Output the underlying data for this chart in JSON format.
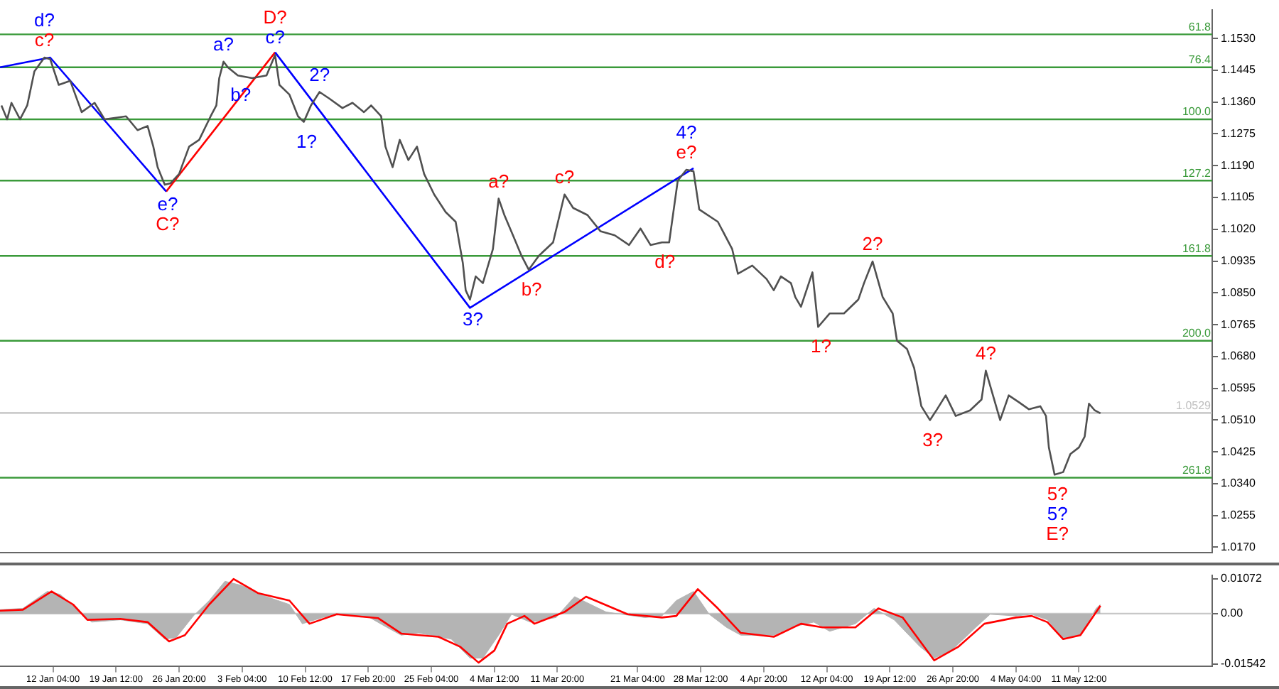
{
  "chart_data": [
    {
      "type": "line",
      "legend": false,
      "marker": "none",
      "line_style": "solid",
      "tick_labels": "y",
      "xlim": [
        "--01-06T00:00",
        "--05-27T00:00"
      ],
      "ylim": [
        1.0155,
        1.1607
      ],
      "yticks": [
        {
          "value": 1.017,
          "label": "1.0170"
        },
        {
          "value": 1.0255,
          "label": "1.0255"
        },
        {
          "value": 1.034,
          "label": "1.0340"
        },
        {
          "value": 1.0425,
          "label": "1.0425"
        },
        {
          "value": 1.051,
          "label": "1.0510"
        },
        {
          "value": 1.0595,
          "label": "1.0595"
        },
        {
          "value": 1.068,
          "label": "1.0680"
        },
        {
          "value": 1.0765,
          "label": "1.0765"
        },
        {
          "value": 1.085,
          "label": "1.0850"
        },
        {
          "value": 1.0935,
          "label": "1.0935"
        },
        {
          "value": 1.102,
          "label": "1.1020"
        },
        {
          "value": 1.1105,
          "label": "1.1105"
        },
        {
          "value": 1.119,
          "label": "1.1190"
        },
        {
          "value": 1.1275,
          "label": "1.1275"
        },
        {
          "value": 1.136,
          "label": "1.1360"
        },
        {
          "value": 1.1445,
          "label": "1.1445"
        },
        {
          "value": 1.153,
          "label": "1.1530"
        }
      ],
      "series": [
        {
          "color": "#505050",
          "x": [
            "--01-06T04:00",
            "--01-06T20:00",
            "--01-07T08:00",
            "--01-08T08:00",
            "--01-09T04:00",
            "--01-10T00:00",
            "--01-11T04:00",
            "--01-11T20:00",
            "--01-12T20:00",
            "--01-14T04:00",
            "--01-15T12:00",
            "--01-17T00:00",
            "--01-18T04:00",
            "--01-20T16:00",
            "--01-22T00:00",
            "--01-23T04:00",
            "--01-23T20:00",
            "--01-24T08:00",
            "--01-25T04:00",
            "--01-25T20:00",
            "--01-26T20:00",
            "--01-28T00:00",
            "--01-29T04:00",
            "--01-30T12:00",
            "--01-31T04:00",
            "--01-31T12:00",
            "--02-01T00:00",
            "--02-01T12:00",
            "--02-02T16:00",
            "--02-04T08:00",
            "--02-06T00:00",
            "--02-07T00:00",
            "--02-07T12:00",
            "--02-08T16:00",
            "--02-09T16:00",
            "--02-10T08:00",
            "--02-11T04:00",
            "--02-12T04:00",
            "--02-13T08:00",
            "--02-14T20:00",
            "--02-16T00:00",
            "--02-17T08:00",
            "--02-18T04:00",
            "--02-19T08:00",
            "--02-19T20:00",
            "--02-20T16:00",
            "--02-21T12:00",
            "--02-22T12:00",
            "--02-23T12:00",
            "--02-24T08:00",
            "--02-25T12:00",
            "--02-26T20:00",
            "--02-28T00:00",
            "--02-28T20:00",
            "--03-01T04:00",
            "--03-01T16:00",
            "--03-02T08:00",
            "--03-03T04:00",
            "--03-04T08:00",
            "--03-05T00:00",
            "--03-05T16:00",
            "--03-06T16:00",
            "--03-07T16:00",
            "--03-08T12:00",
            "--03-09T16:00",
            "--03-11T08:00",
            "--03-12T16:00",
            "--03-13T16:00",
            "--03-15T08:00",
            "--03-16T20:00",
            "--03-18T12:00",
            "--03-20T04:00",
            "--03-21T12:00",
            "--03-22T16:00",
            "--03-24T00:00",
            "--03-24T20:00",
            "--03-25T20:00",
            "--03-26T20:00",
            "--03-27T16:00",
            "--03-28T08:00",
            "--03-30T12:00",
            "--04-01T04:00",
            "--04-01T20:00",
            "--04-03T12:00",
            "--04-05T04:00",
            "--04-06T00:00",
            "--04-06T20:00",
            "--04-08T00:00",
            "--04-08T12:00",
            "--04-09T04:00",
            "--04-10T12:00",
            "--04-11T04:00",
            "--04-12T12:00",
            "--04-14T04:00",
            "--04-15T20:00",
            "--04-16T12:00",
            "--04-17T12:00",
            "--04-18T16:00",
            "--04-19T20:00",
            "--04-20T08:00",
            "--04-21T12:00",
            "--04-22T08:00",
            "--04-23T04:00",
            "--04-24T04:00",
            "--04-25T00:00",
            "--04-26T00:00",
            "--04-27T04:00",
            "--04-28T20:00",
            "--04-30T04:00",
            "--04-30T16:00",
            "--05-01T12:00",
            "--05-02T08:00",
            "--05-03T08:00",
            "--05-04T12:00",
            "--05-05T16:00",
            "--05-07T00:00",
            "--05-07T16:00",
            "--05-08T00:00",
            "--05-08T16:00",
            "--05-09T16:00",
            "--05-10T12:00",
            "--05-11T12:00",
            "--05-12T04:00",
            "--05-12T16:00",
            "--05-13T08:00",
            "--05-14T00:00"
          ],
          "values": [
            1.1351,
            1.1314,
            1.1358,
            1.1314,
            1.1351,
            1.1442,
            1.1479,
            1.1475,
            1.1406,
            1.1417,
            1.1333,
            1.1358,
            1.1314,
            1.1322,
            1.1285,
            1.1296,
            1.1241,
            1.1186,
            1.1139,
            1.1143,
            1.1168,
            1.1241,
            1.1259,
            1.1322,
            1.1351,
            1.1424,
            1.1468,
            1.1453,
            1.1431,
            1.1424,
            1.1431,
            1.1486,
            1.1406,
            1.138,
            1.1322,
            1.1307,
            1.1351,
            1.1387,
            1.1369,
            1.1344,
            1.1358,
            1.1333,
            1.1351,
            1.1322,
            1.1241,
            1.1186,
            1.1259,
            1.1205,
            1.1241,
            1.1168,
            1.1113,
            1.1066,
            1.104,
            1.093,
            1.0857,
            1.0832,
            1.0894,
            1.0876,
            1.0967,
            1.1102,
            1.1058,
            1.1004,
            1.0949,
            1.0912,
            1.0949,
            1.0985,
            1.1113,
            1.1077,
            1.1058,
            1.1015,
            1.1004,
            1.0978,
            1.1022,
            1.0978,
            1.0985,
            1.0985,
            1.115,
            1.1179,
            1.1175,
            1.1073,
            1.104,
            1.0967,
            1.0901,
            1.0923,
            1.0887,
            1.0857,
            1.0894,
            1.0876,
            1.0839,
            1.0813,
            1.0905,
            1.0759,
            1.0795,
            1.0795,
            1.0832,
            1.0876,
            1.0934,
            1.0839,
            1.0795,
            1.0722,
            1.07,
            1.0649,
            1.0547,
            1.051,
            1.0539,
            1.0576,
            1.0521,
            1.0536,
            1.0565,
            1.0642,
            1.0576,
            1.051,
            1.0576,
            1.0558,
            1.0539,
            1.0547,
            1.0521,
            1.0437,
            1.0364,
            1.0371,
            1.0419,
            1.0437,
            1.0466,
            1.0554,
            1.0536,
            1.0528
          ]
        },
        {
          "color": "#0000ff",
          "x": [
            "--01-06T00:00",
            "--01-11T20:00",
            "--01-25T08:00",
            "--01-31T16:00",
            "--02-07T00:00",
            "--03-01T16:00",
            "--03-27T16:00"
          ],
          "values": [
            1.1453,
            1.1479,
            1.1121,
            null,
            1.1493,
            1.081,
            1.1183
          ]
        },
        {
          "color": "#ff0000",
          "x": [
            "--01-25T08:00",
            "--02-07T00:00"
          ],
          "values": [
            1.1121,
            1.1493
          ]
        }
      ],
      "annotations": [
        {
          "text": "c?",
          "x": "--01-11T04:00",
          "y": 1.1479
        },
        {
          "text": "a?",
          "x": "--03-05T00:00",
          "y": 1.1102
        },
        {
          "text": "b?",
          "x": "--03-08T12:00",
          "y": 1.0912
        },
        {
          "text": "c?",
          "x": "--03-12T16:00",
          "y": 1.1113
        },
        {
          "text": "d?",
          "x": "--03-24T00:00",
          "y": 1.0985
        },
        {
          "text": "e?",
          "x": "--03-26T20:00",
          "y": 1.1179
        },
        {
          "text": "1?",
          "x": "--04-11T04:00",
          "y": 1.0759
        },
        {
          "text": "2?",
          "x": "--04-17T12:00",
          "y": 1.0934
        },
        {
          "text": "3?",
          "x": "--04-24T04:00",
          "y": 1.051
        },
        {
          "text": "4?",
          "x": "--04-30T16:00",
          "y": 1.0642
        },
        {
          "text": "5?",
          "x": "--05-08T16:00",
          "y": 1.0364
        },
        {
          "text": "d?",
          "x": "--01-11T04:00",
          "y": 1.1479
        },
        {
          "text": "e?",
          "x": "--01-25T04:00",
          "y": 1.1139
        },
        {
          "text": "a?",
          "x": "--02-01T00:00",
          "y": 1.1468
        },
        {
          "text": "b?",
          "x": "--02-02T16:00",
          "y": 1.1431
        },
        {
          "text": "c?",
          "x": "--02-07T00:00",
          "y": 1.1486
        },
        {
          "text": "1?",
          "x": "--02-10T08:00",
          "y": 1.1307
        },
        {
          "text": "2?",
          "x": "--02-12T04:00",
          "y": 1.1387
        },
        {
          "text": "3?",
          "x": "--03-01T16:00",
          "y": 1.0832
        },
        {
          "text": "4?",
          "x": "--03-26T20:00",
          "y": 1.1179
        },
        {
          "text": "5?",
          "x": "--05-08T16:00",
          "y": 1.0364
        },
        {
          "text": "C?",
          "x": "--01-25T04:00",
          "y": 1.1139
        },
        {
          "text": "D?",
          "x": "--02-07T00:00",
          "y": 1.1486
        },
        {
          "text": "E?",
          "x": "--05-08T16:00",
          "y": 1.0364
        },
        {
          "text": "61.8",
          "x": "--05-27T00:00",
          "y": 1.1541
        },
        {
          "text": "76.4",
          "x": "--05-27T00:00",
          "y": 1.1453
        },
        {
          "text": "100.0",
          "x": "--05-27T00:00",
          "y": 1.1314
        },
        {
          "text": "127.2",
          "x": "--05-27T00:00",
          "y": 1.115
        },
        {
          "text": "161.8",
          "x": "--05-27T00:00",
          "y": 1.0949
        },
        {
          "text": "200.0",
          "x": "--05-27T00:00",
          "y": 1.0722
        },
        {
          "text": "261.8",
          "x": "--05-27T00:00",
          "y": 1.0356
        }
      ],
      "ref_lines": [
        {
          "axis": "y",
          "value": 1.1541,
          "color": "#3a9a3a"
        },
        {
          "axis": "y",
          "value": 1.1453,
          "color": "#3a9a3a"
        },
        {
          "axis": "y",
          "value": 1.1314,
          "color": "#3a9a3a"
        },
        {
          "axis": "y",
          "value": 1.115,
          "color": "#3a9a3a"
        },
        {
          "axis": "y",
          "value": 1.0949,
          "color": "#3a9a3a"
        },
        {
          "axis": "y",
          "value": 1.0722,
          "color": "#3a9a3a"
        },
        {
          "axis": "y",
          "value": 1.0356,
          "color": "#3a9a3a"
        },
        {
          "axis": "y",
          "value": 1.0529,
          "label": "1.0529",
          "color": "#c0c0c0"
        }
      ]
    },
    {
      "type": "area",
      "legend": false,
      "marker": "none",
      "line_style": "solid",
      "xlim": [
        "--01-06T00:00",
        "--05-27T00:00"
      ],
      "ylim": [
        -0.0162,
        0.0118
      ],
      "xticks": [
        {
          "value": "--01-12T04:00",
          "label": "12 Jan 04:00"
        },
        {
          "value": "--01-19T12:00",
          "label": "19 Jan 12:00"
        },
        {
          "value": "--01-26T20:00",
          "label": "26 Jan 20:00"
        },
        {
          "value": "--02-03T04:00",
          "label": "3 Feb 04:00"
        },
        {
          "value": "--02-10T12:00",
          "label": "10 Feb 12:00"
        },
        {
          "value": "--02-17T20:00",
          "label": "17 Feb 20:00"
        },
        {
          "value": "--02-25T04:00",
          "label": "25 Feb 04:00"
        },
        {
          "value": "--03-04T12:00",
          "label": "4 Mar 12:00"
        },
        {
          "value": "--03-11T20:00",
          "label": "11 Mar 20:00"
        },
        {
          "value": "--03-21T04:00",
          "label": "21 Mar 04:00"
        },
        {
          "value": "--03-28T12:00",
          "label": "28 Mar 12:00"
        },
        {
          "value": "--04-04T20:00",
          "label": "4 Apr 20:00"
        },
        {
          "value": "--04-12T04:00",
          "label": "12 Apr 04:00"
        },
        {
          "value": "--04-19T12:00",
          "label": "19 Apr 12:00"
        },
        {
          "value": "--04-26T20:00",
          "label": "26 Apr 20:00"
        },
        {
          "value": "--05-04T04:00",
          "label": "4 May 04:00"
        },
        {
          "value": "--05-11T12:00",
          "label": "11 May 12:00"
        }
      ],
      "yticks": [
        0.01072,
        {
          "value": 0,
          "label": "0.00"
        },
        -0.01542
      ],
      "series": [
        {
          "color": "#b4b4b4",
          "x": [
            "--01-06T00:00",
            "--01-08T16:00",
            "--01-11T12:00",
            "--01-13T00:00",
            "--01-15T08:00",
            "--01-16T16:00",
            "--01-20T00:00",
            "--01-23T04:00",
            "--01-25T04:00",
            "--01-26T12:00",
            "--01-28T12:00",
            "--01-30T08:00",
            "--02-01T04:00",
            "--02-03T00:00",
            "--02-06T00:00",
            "--02-08T16:00",
            "--02-10T04:00",
            "--02-12T12:00",
            "--02-14T04:00",
            "--02-18T00:00",
            "--02-20T00:00",
            "--02-21T16:00",
            "--02-23T16:00",
            "--02-27T12:00",
            "--03-01T16:00",
            "--03-03T04:00",
            "--03-05T00:00",
            "--03-06T12:00",
            "--03-08T16:00",
            "--03-11T16:00",
            "--03-13T20:00",
            "--03-17T12:00",
            "--03-22T00:00",
            "--03-24T00:00",
            "--03-25T16:00",
            "--03-27T16:00",
            "--03-29T12:00",
            "--03-31T12:00",
            "--04-02T04:00",
            "--04-06T00:00",
            "--04-08T00:00",
            "--04-10T16:00",
            "--04-12T12:00",
            "--04-15T12:00",
            "--04-17T16:00",
            "--04-20T00:00",
            "--04-23T00:00",
            "--04-24T16:00",
            "--04-26T16:00",
            "--04-29T12:00",
            "--05-01T04:00",
            "--05-04T04:00",
            "--05-06T00:00",
            "--05-07T20:00",
            "--05-09T16:00",
            "--05-11T16:00",
            "--05-13T12:00",
            "--05-14T00:00"
          ],
          "values": [
            0.0012,
            0.0016,
            0.0068,
            0.0059,
            0.0005,
            -0.0026,
            -0.0019,
            -0.0031,
            -0.0078,
            -0.0073,
            -0.0007,
            0.004,
            0.0099,
            0.0087,
            0.0052,
            0.0028,
            -0.0031,
            -0.0012,
            -0.0002,
            -0.0012,
            -0.0042,
            -0.0066,
            -0.0059,
            -0.0078,
            -0.0136,
            -0.0136,
            -0.0066,
            -0.0002,
            -0.0026,
            -0.0012,
            0.0052,
            0.0005,
            -0.0012,
            -0.0007,
            0.004,
            0.0068,
            -0.0002,
            -0.0042,
            -0.0066,
            -0.0066,
            -0.0042,
            -0.0026,
            -0.0054,
            -0.0031,
            0.0016,
            -0.0019,
            -0.0101,
            -0.0136,
            -0.0113,
            -0.0042,
            -0.0002,
            -0.0007,
            -0.0002,
            -0.0019,
            -0.0078,
            -0.0066,
            0.0016,
            0.0028
          ]
        },
        {
          "type": "line",
          "color": "#ff0000",
          "x": [
            "--01-06T00:00",
            "--01-08T16:00",
            "--01-12T00:00",
            "--01-14T12:00",
            "--01-16T04:00",
            "--01-20T00:00",
            "--01-23T04:00",
            "--01-25T16:00",
            "--01-27T12:00",
            "--01-30T08:00",
            "--02-02T04:00",
            "--02-05T00:00",
            "--02-08T16:00",
            "--02-11T00:00",
            "--02-14T04:00",
            "--02-19T00:00",
            "--02-21T16:00",
            "--02-26T00:00",
            "--02-28T12:00",
            "--03-02T16:00",
            "--03-04T12:00",
            "--03-06T00:00",
            "--03-08T00:00",
            "--03-09T04:00",
            "--03-12T16:00",
            "--03-15T04:00",
            "--03-20T00:00",
            "--03-24T00:00",
            "--03-25T16:00",
            "--03-28T04:00",
            "--03-30T12:00",
            "--04-02T04:00",
            "--04-06T00:00",
            "--04-09T04:00",
            "--04-11T16:00",
            "--04-15T12:00",
            "--04-18T04:00",
            "--04-21T00:00",
            "--04-24T16:00",
            "--04-27T12:00",
            "--04-30T12:00",
            "--05-04T04:00",
            "--05-06T00:00",
            "--05-07T20:00",
            "--05-09T16:00",
            "--05-11T16:00",
            "--05-14T00:00"
          ],
          "values": [
            0.0009,
            0.0012,
            0.0068,
            0.0028,
            -0.0019,
            -0.0016,
            -0.0026,
            -0.0085,
            -0.0066,
            0.0028,
            0.0106,
            0.0063,
            0.004,
            -0.0031,
            -0.0002,
            -0.0014,
            -0.0061,
            -0.0071,
            -0.0101,
            -0.015,
            -0.0113,
            -0.0031,
            -0.0007,
            -0.0031,
            0.0005,
            0.0052,
            -0.0002,
            -0.0012,
            -0.0007,
            0.0075,
            0.0016,
            -0.0059,
            -0.0071,
            -0.0031,
            -0.0042,
            -0.0042,
            0.0016,
            -0.0012,
            -0.0143,
            -0.0101,
            -0.0031,
            -0.0012,
            -0.0007,
            -0.0026,
            -0.0078,
            -0.0066,
            0.0024
          ]
        }
      ],
      "ref_lines": [
        {
          "axis": "y",
          "value": 0,
          "color": "#c8c8c8"
        }
      ]
    }
  ]
}
